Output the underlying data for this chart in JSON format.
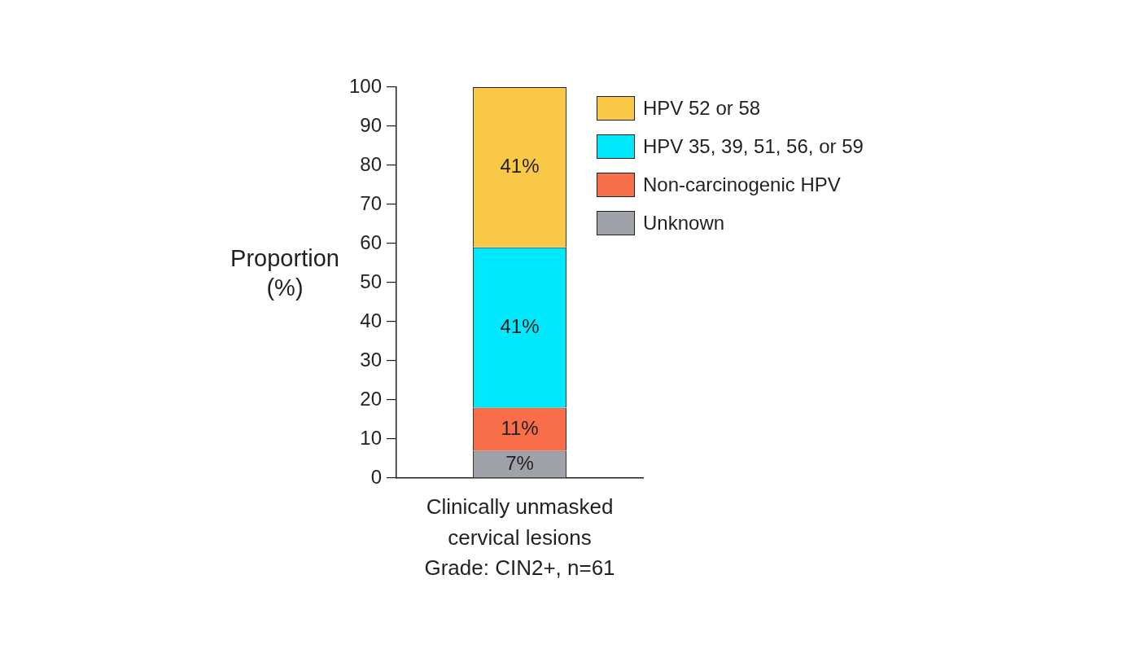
{
  "chart_data": {
    "type": "bar",
    "stacked": true,
    "categories": [
      "Clinically unmasked cervical lesions Grade: CIN2+, n=61"
    ],
    "ylabel": "Proportion (%)",
    "ylim": [
      0,
      100
    ],
    "yticks": [
      0,
      10,
      20,
      30,
      40,
      50,
      60,
      70,
      80,
      90,
      100
    ],
    "grid": false,
    "legend": "top right",
    "series": [
      {
        "name": "Unknown",
        "color": "#a0a2a9",
        "values": [
          7
        ],
        "value_labels": [
          "7%"
        ]
      },
      {
        "name": "Non-carcinogenic HPV",
        "color": "#f76e49",
        "values": [
          11
        ],
        "value_labels": [
          "11%"
        ]
      },
      {
        "name": "HPV 35, 39, 51, 56, or 59",
        "color": "#00e8fb",
        "values": [
          41
        ],
        "value_labels": [
          "41%"
        ]
      },
      {
        "name": "HPV 52 or 58",
        "color": "#f8c846",
        "values": [
          41
        ],
        "value_labels": [
          "41%"
        ]
      }
    ]
  }
}
